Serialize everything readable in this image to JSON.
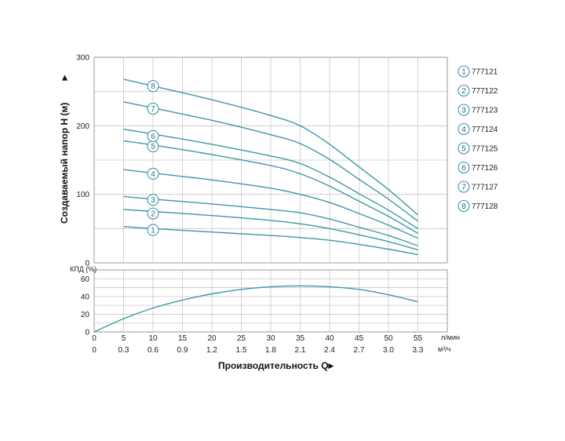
{
  "chart_data": [
    {
      "type": "line",
      "ylabel": "Создаваемый напор H (м)",
      "y_arrow": "►",
      "xlim": [
        0,
        60
      ],
      "ylim": [
        0,
        300
      ],
      "yticks": [
        "0",
        "100",
        "200",
        "300"
      ],
      "series": [
        {
          "name": "1",
          "x": [
            5,
            10,
            20,
            30,
            35,
            40,
            45,
            50,
            55
          ],
          "y": [
            53,
            50,
            45,
            40,
            37,
            33,
            27,
            20,
            12
          ]
        },
        {
          "name": "2",
          "x": [
            5,
            10,
            20,
            30,
            35,
            40,
            45,
            50,
            55
          ],
          "y": [
            78,
            75,
            69,
            62,
            57,
            50,
            41,
            31,
            19
          ]
        },
        {
          "name": "3",
          "x": [
            5,
            10,
            20,
            30,
            35,
            40,
            45,
            50,
            55
          ],
          "y": [
            97,
            93,
            86,
            78,
            73,
            64,
            52,
            40,
            25
          ]
        },
        {
          "name": "4",
          "x": [
            5,
            10,
            20,
            30,
            35,
            40,
            45,
            50,
            55
          ],
          "y": [
            136,
            131,
            121,
            109,
            100,
            88,
            72,
            55,
            36
          ]
        },
        {
          "name": "5",
          "x": [
            5,
            10,
            20,
            30,
            35,
            40,
            45,
            50,
            55
          ],
          "y": [
            178,
            172,
            158,
            142,
            130,
            112,
            90,
            68,
            43
          ]
        },
        {
          "name": "6",
          "x": [
            5,
            10,
            20,
            30,
            35,
            40,
            45,
            50,
            55
          ],
          "y": [
            195,
            188,
            173,
            156,
            145,
            125,
            101,
            77,
            50
          ]
        },
        {
          "name": "7",
          "x": [
            5,
            10,
            20,
            30,
            35,
            40,
            45,
            50,
            55
          ],
          "y": [
            235,
            226,
            208,
            187,
            174,
            151,
            122,
            93,
            61
          ]
        },
        {
          "name": "8",
          "x": [
            5,
            10,
            20,
            30,
            35,
            40,
            45,
            50,
            55
          ],
          "y": [
            268,
            258,
            238,
            215,
            200,
            173,
            140,
            107,
            70
          ]
        }
      ],
      "markers": [
        {
          "label": "1",
          "x": 10,
          "y": 48
        },
        {
          "label": "2",
          "x": 10,
          "y": 72
        },
        {
          "label": "3",
          "x": 10,
          "y": 92
        },
        {
          "label": "4",
          "x": 10,
          "y": 130
        },
        {
          "label": "5",
          "x": 10,
          "y": 170
        },
        {
          "label": "6",
          "x": 10,
          "y": 185
        },
        {
          "label": "7",
          "x": 10,
          "y": 225
        },
        {
          "label": "8",
          "x": 10,
          "y": 258
        }
      ],
      "legend": [
        {
          "num": "1",
          "code": "777121"
        },
        {
          "num": "2",
          "code": "777122"
        },
        {
          "num": "3",
          "code": "777123"
        },
        {
          "num": "4",
          "code": "777124"
        },
        {
          "num": "5",
          "code": "777125"
        },
        {
          "num": "6",
          "code": "777126"
        },
        {
          "num": "7",
          "code": "777127"
        },
        {
          "num": "8",
          "code": "777128"
        }
      ],
      "legend_position": "right",
      "grid": true
    },
    {
      "type": "line",
      "ylabel": "КПД (%)",
      "xlim": [
        0,
        60
      ],
      "ylim": [
        0,
        70
      ],
      "yticks": [
        "0",
        "20",
        "40",
        "60"
      ],
      "series": [
        {
          "x": [
            0,
            5,
            10,
            15,
            20,
            25,
            30,
            35,
            40,
            45,
            50,
            55
          ],
          "y": [
            0,
            15,
            27,
            36,
            43,
            48,
            51,
            52,
            51,
            48,
            42,
            34
          ]
        }
      ],
      "grid": true
    }
  ],
  "x_axis": {
    "ticks_lpm": [
      "0",
      "5",
      "10",
      "15",
      "20",
      "25",
      "30",
      "35",
      "40",
      "45",
      "50",
      "55"
    ],
    "ticks_m3h": [
      "0",
      "0.3",
      "0.6",
      "0.9",
      "1.2",
      "1.5",
      "1.8",
      "2.1",
      "2.4",
      "2.7",
      "3.0",
      "3.3"
    ],
    "unit_lpm": "л/мин",
    "unit_m3h": "м³/ч",
    "title": "Производительность Q",
    "title_arrow": "►"
  },
  "colors": {
    "curve": "#3d97a8",
    "grid": "#c8c8c8",
    "frame": "#9a9a9a"
  }
}
